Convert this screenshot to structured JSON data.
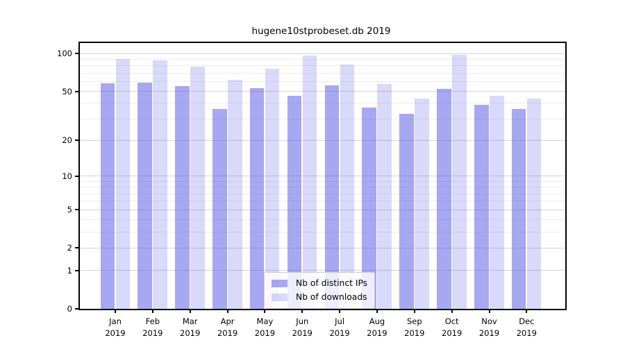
{
  "title": "hugene10stprobeset.db 2019",
  "chart_data": {
    "type": "bar",
    "title": "hugene10stprobeset.db 2019",
    "categories": [
      "Jan",
      "Feb",
      "Mar",
      "Apr",
      "May",
      "Jun",
      "Jul",
      "Aug",
      "Sep",
      "Oct",
      "Nov",
      "Dec"
    ],
    "x_year_line": "2019",
    "series": [
      {
        "name": "Nb of distinct IPs",
        "color": "rgba(80,80,230,0.5)",
        "values": [
          58,
          59,
          55,
          36,
          53,
          46,
          56,
          37,
          33,
          52,
          39,
          36
        ]
      },
      {
        "name": "Nb of downloads",
        "color": "rgba(80,80,230,0.22)",
        "values": [
          90,
          88,
          79,
          62,
          76,
          96,
          82,
          57,
          44,
          98,
          46,
          44
        ]
      }
    ],
    "yscale": "log1p",
    "ylim": [
      0,
      121
    ],
    "yticks": [
      0,
      1,
      2,
      5,
      10,
      20,
      50,
      100
    ],
    "yticks_minor": [
      3,
      4,
      6,
      7,
      8,
      9,
      30,
      40,
      60,
      70,
      80,
      90
    ],
    "grid": true,
    "grid_major_color": "#d4d4d4",
    "grid_minor_color": "#ededed",
    "legend_position": "lower center",
    "xlabel": "",
    "ylabel": ""
  }
}
